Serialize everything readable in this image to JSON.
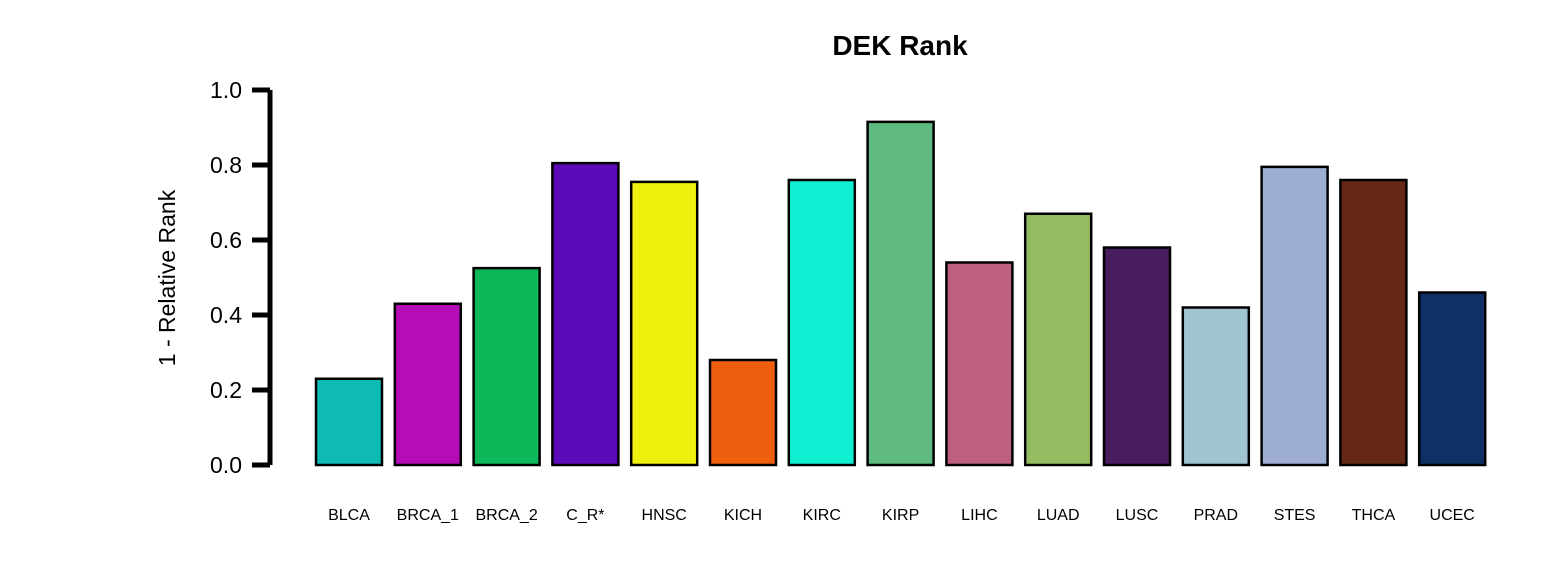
{
  "chart_data": {
    "type": "bar",
    "title": "DEK Rank",
    "xlabel": "",
    "ylabel": "1 - Relative Rank",
    "ylim": [
      0,
      1
    ],
    "yticks": [
      "0.0",
      "0.2",
      "0.4",
      "0.6",
      "0.8",
      "1.0"
    ],
    "grid": false,
    "categories": [
      "BLCA",
      "BRCA_1",
      "BRCA_2",
      "C_R*",
      "HNSC",
      "KICH",
      "KIRC",
      "KIRP",
      "LIHC",
      "LUAD",
      "LUSC",
      "PRAD",
      "STES",
      "THCA",
      "UCEC"
    ],
    "values": [
      0.23,
      0.43,
      0.525,
      0.805,
      0.755,
      0.28,
      0.76,
      0.915,
      0.54,
      0.67,
      0.58,
      0.42,
      0.795,
      0.76,
      0.46
    ],
    "colors": [
      "#0ebcb5",
      "#b40db8",
      "#0bb85a",
      "#5c0bb8",
      "#eef00d",
      "#f05f0d",
      "#0ff0d2",
      "#5fbb80",
      "#bd607f",
      "#96bc61",
      "#481c5f",
      "#a0c4d2",
      "#9eaed2",
      "#652814",
      "#0f3065"
    ]
  }
}
